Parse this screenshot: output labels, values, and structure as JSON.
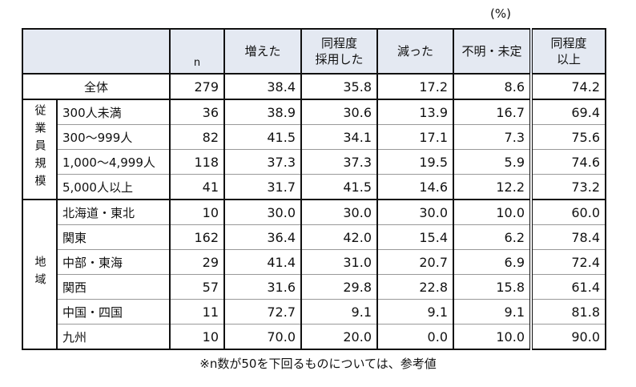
{
  "unit_label": "(%)",
  "headers": {
    "n": "n",
    "increased": "増えた",
    "same": "同程度\n採用した",
    "decreased": "減った",
    "unknown": "不明・未定",
    "same_or_more": "同程度\n以上"
  },
  "total": {
    "label": "全体",
    "values": [
      "279",
      "38.4",
      "35.8",
      "17.2",
      "8.6",
      "74.2"
    ]
  },
  "groups": [
    {
      "label": "従業員規模",
      "rows": [
        {
          "label": "300人未満",
          "values": [
            "36",
            "38.9",
            "30.6",
            "13.9",
            "16.7",
            "69.4"
          ]
        },
        {
          "label": "300〜999人",
          "values": [
            "82",
            "41.5",
            "34.1",
            "17.1",
            "7.3",
            "75.6"
          ]
        },
        {
          "label": "1,000〜4,999人",
          "values": [
            "118",
            "37.3",
            "37.3",
            "19.5",
            "5.9",
            "74.6"
          ]
        },
        {
          "label": "5,000人以上",
          "values": [
            "41",
            "31.7",
            "41.5",
            "14.6",
            "12.2",
            "73.2"
          ]
        }
      ]
    },
    {
      "label": "地域",
      "rows": [
        {
          "label": "北海道・東北",
          "values": [
            "10",
            "30.0",
            "30.0",
            "30.0",
            "10.0",
            "60.0"
          ]
        },
        {
          "label": "関東",
          "values": [
            "162",
            "36.4",
            "42.0",
            "15.4",
            "6.2",
            "78.4"
          ]
        },
        {
          "label": "中部・東海",
          "values": [
            "29",
            "41.4",
            "31.0",
            "20.7",
            "6.9",
            "72.4"
          ]
        },
        {
          "label": "関西",
          "values": [
            "57",
            "31.6",
            "29.8",
            "22.8",
            "15.8",
            "61.4"
          ]
        },
        {
          "label": "中国・四国",
          "values": [
            "11",
            "72.7",
            "9.1",
            "9.1",
            "9.1",
            "81.8"
          ]
        },
        {
          "label": "九州",
          "values": [
            "10",
            "70.0",
            "20.0",
            "0.0",
            "10.0",
            "90.0"
          ]
        }
      ]
    }
  ],
  "footnote": "※n数が50を下回るものについては、参考値"
}
